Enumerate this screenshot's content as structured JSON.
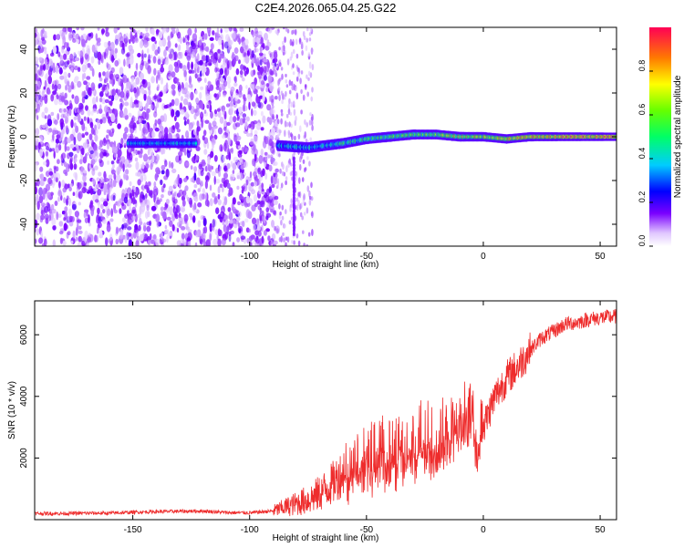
{
  "title": "C2E4.2026.065.04.25.G22",
  "chart_data": [
    {
      "type": "heatmap",
      "name": "spectrogram",
      "xlabel": "Height of straight line (km)",
      "ylabel": "Frequency (Hz)",
      "xlim": [
        -192,
        57
      ],
      "ylim": [
        -50,
        50
      ],
      "xticks": [
        -150,
        -100,
        -50,
        0,
        50
      ],
      "yticks": [
        -40,
        -20,
        0,
        20,
        40
      ],
      "colorbar": {
        "label": "Normalized spectral amplitude",
        "range": [
          0,
          1
        ],
        "ticks": [
          "0.0",
          "0.2",
          "0.4",
          "0.6",
          "0.8"
        ],
        "tick_values": [
          0,
          0.2,
          0.4,
          0.6,
          0.8
        ]
      },
      "ridge": {
        "x": [
          -150,
          -140,
          -125,
          -88,
          -75,
          -60,
          -50,
          -40,
          -30,
          -20,
          -10,
          0,
          10,
          20,
          30,
          40,
          50,
          57
        ],
        "y": [
          -3,
          -3,
          -3,
          -4,
          -5,
          -3,
          -1,
          0,
          1,
          1,
          0,
          0,
          -1,
          0,
          0,
          0,
          0,
          0
        ]
      }
    },
    {
      "type": "line",
      "name": "snr",
      "xlabel": "Height of straight line (km)",
      "ylabel": "SNR (10 * v/v)",
      "xlim": [
        -192,
        57
      ],
      "ylim": [
        0,
        7100
      ],
      "xticks": [
        -150,
        -100,
        -50,
        0,
        50
      ],
      "yticks": [
        2000,
        4000,
        6000
      ],
      "series": [
        {
          "name": "SNR",
          "color": "#ee2c2c",
          "x": [
            -192,
            -180,
            -170,
            -160,
            -150,
            -140,
            -130,
            -120,
            -110,
            -100,
            -90,
            -85,
            -80,
            -75,
            -70,
            -65,
            -60,
            -55,
            -50,
            -45,
            -40,
            -35,
            -30,
            -25,
            -20,
            -15,
            -10,
            -5,
            -3,
            0,
            5,
            10,
            15,
            20,
            25,
            30,
            35,
            40,
            45,
            50,
            57
          ],
          "values": [
            200,
            200,
            210,
            210,
            240,
            260,
            270,
            280,
            230,
            220,
            280,
            400,
            520,
            650,
            850,
            1150,
            1550,
            1950,
            2100,
            2200,
            2250,
            2350,
            2500,
            2650,
            2800,
            3000,
            3250,
            3550,
            2900,
            3000,
            4000,
            4600,
            5000,
            5500,
            5900,
            6100,
            6350,
            6400,
            6500,
            6550,
            6600
          ]
        }
      ]
    }
  ]
}
